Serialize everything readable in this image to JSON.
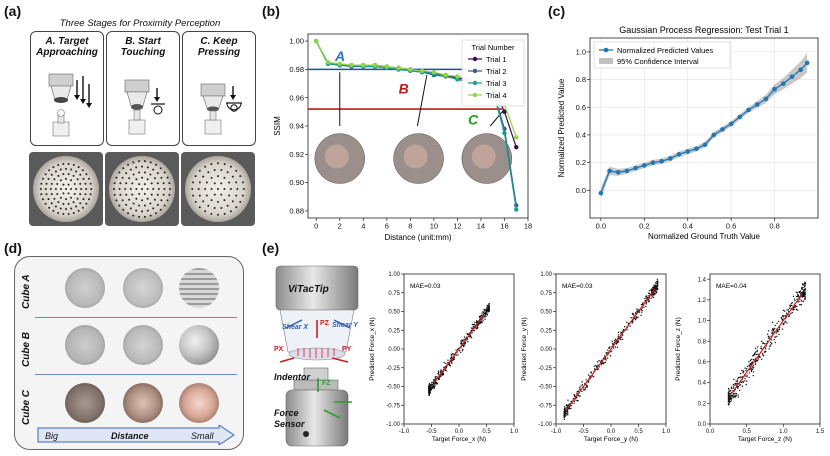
{
  "panels": {
    "a": {
      "label": "(a)",
      "title": "Three Stages for Proximity Perception",
      "stages": [
        {
          "line1": "A. Target",
          "line2": "Approaching"
        },
        {
          "line1": "B. Start",
          "line2": "Touching"
        },
        {
          "line1": "C. Keep",
          "line2": "Pressing"
        }
      ]
    },
    "b": {
      "label": "(b)"
    },
    "c": {
      "label": "(c)"
    },
    "d": {
      "label": "(d)",
      "rows": [
        "Cube A",
        "Cube B",
        "Cube C"
      ],
      "axis": {
        "left": "Big",
        "center": "Distance",
        "right": "Small"
      }
    },
    "e": {
      "label": "(e)",
      "device": "ViTacTip",
      "labels": {
        "shear_x": "Shear X",
        "shear_y": "Shear Y",
        "pz": "PZ",
        "px": "PX",
        "py": "PY",
        "indentor": "Indentor",
        "fz": "FZ",
        "force_sensor": "Force Sensor"
      }
    }
  },
  "chart_data": [
    {
      "id": "ssim",
      "type": "line",
      "title": "",
      "xlabel": "Distance (unit:mm)",
      "ylabel": "SSIM",
      "xlim": [
        -0.7,
        18
      ],
      "ylim": [
        0.875,
        1.005
      ],
      "xticks": [
        "0",
        "2",
        "4",
        "6",
        "8",
        "10",
        "12",
        "14",
        "16",
        "18"
      ],
      "yticks": [
        "0.88",
        "0.90",
        "0.92",
        "0.94",
        "0.96",
        "0.98",
        "1.00"
      ],
      "legend_title": "Trial Number",
      "legend_position": "top-right",
      "x": [
        0,
        1,
        2,
        3,
        4,
        5,
        6,
        7,
        8,
        9,
        10,
        11,
        12,
        13,
        14,
        15,
        16,
        17
      ],
      "series": [
        {
          "name": "Trial 1",
          "color": "#3b0a4f",
          "values": [
            1.0,
            0.984,
            0.983,
            0.983,
            0.983,
            0.983,
            0.982,
            0.981,
            0.98,
            0.979,
            0.977,
            0.976,
            0.974,
            0.972,
            0.97,
            0.968,
            0.95,
            0.925
          ]
        },
        {
          "name": "Trial 2",
          "color": "#3a5b8c",
          "values": [
            1.0,
            0.984,
            0.983,
            0.982,
            0.982,
            0.982,
            0.981,
            0.98,
            0.979,
            0.978,
            0.976,
            0.975,
            0.973,
            0.971,
            0.969,
            0.966,
            0.938,
            0.884
          ]
        },
        {
          "name": "Trial 3",
          "color": "#1f9e89",
          "values": [
            1.0,
            0.984,
            0.983,
            0.983,
            0.982,
            0.982,
            0.981,
            0.98,
            0.979,
            0.978,
            0.977,
            0.975,
            0.973,
            0.971,
            0.969,
            0.965,
            0.935,
            0.881
          ]
        },
        {
          "name": "Trial 4",
          "color": "#8fd744",
          "values": [
            1.0,
            0.985,
            0.984,
            0.983,
            0.983,
            0.983,
            0.982,
            0.981,
            0.98,
            0.979,
            0.978,
            0.976,
            0.975,
            0.973,
            0.971,
            0.968,
            0.955,
            0.932
          ]
        }
      ],
      "hlines": [
        {
          "y": 0.98,
          "color": "#1f4fa8"
        },
        {
          "y": 0.952,
          "color": "#c01818"
        }
      ],
      "annotations": [
        {
          "text": "A",
          "color": "#2f6fd1",
          "x": 1.6,
          "y": 0.986
        },
        {
          "text": "B",
          "color": "#c01818",
          "x": 7.0,
          "y": 0.963
        },
        {
          "text": "C",
          "color": "#1aa31a",
          "x": 12.9,
          "y": 0.941
        }
      ]
    },
    {
      "id": "gpr",
      "type": "line",
      "title": "Gaussian Process Regression: Test Trial 1",
      "xlabel": "Normalized Ground Truth Value",
      "ylabel": "Normalized Predicted Value",
      "xlim": [
        -0.05,
        1.0
      ],
      "ylim": [
        -0.2,
        1.1
      ],
      "xticks": [
        "0.0",
        "0.2",
        "0.4",
        "0.6",
        "0.8"
      ],
      "yticks": [
        "0.0",
        "0.2",
        "0.4",
        "0.6",
        "0.8",
        "1.0"
      ],
      "legend": [
        "Normalized Predicted Values",
        "95% Confidence Interval"
      ],
      "legend_position": "top-left",
      "x": [
        0.0,
        0.04,
        0.08,
        0.12,
        0.16,
        0.2,
        0.24,
        0.28,
        0.32,
        0.36,
        0.4,
        0.44,
        0.48,
        0.52,
        0.56,
        0.6,
        0.64,
        0.68,
        0.72,
        0.76,
        0.8,
        0.84,
        0.88,
        0.92,
        0.95
      ],
      "values": [
        -0.02,
        0.14,
        0.13,
        0.14,
        0.16,
        0.18,
        0.2,
        0.21,
        0.23,
        0.26,
        0.28,
        0.3,
        0.33,
        0.4,
        0.44,
        0.48,
        0.53,
        0.58,
        0.62,
        0.66,
        0.73,
        0.77,
        0.82,
        0.87,
        0.92
      ],
      "ci_halfwidth": [
        0.04,
        0.03,
        0.025,
        0.02,
        0.02,
        0.02,
        0.02,
        0.02,
        0.02,
        0.02,
        0.02,
        0.02,
        0.02,
        0.02,
        0.02,
        0.02,
        0.02,
        0.02,
        0.025,
        0.03,
        0.035,
        0.04,
        0.05,
        0.06,
        0.07
      ]
    },
    {
      "id": "fx",
      "type": "scatter",
      "xlabel": "Target Force_x (N)",
      "ylabel": "Predicted Force_x (N)",
      "annotation": "MAE=0.03",
      "xlim": [
        -1.0,
        1.0
      ],
      "ylim": [
        -1.0,
        1.0
      ],
      "xticks": [
        "-1.0",
        "-0.5",
        "0.0",
        "0.5",
        "1.0"
      ],
      "yticks": [
        "-1.00",
        "-0.75",
        "-0.50",
        "-0.25",
        "0.00",
        "0.25",
        "0.50",
        "0.75",
        "1.00"
      ],
      "fit_line": [
        [
          -0.45,
          -0.45
        ],
        [
          0.45,
          0.45
        ]
      ],
      "cloud": {
        "x_range": [
          -0.55,
          0.55
        ],
        "spread": 0.04
      }
    },
    {
      "id": "fy",
      "type": "scatter",
      "xlabel": "Target Force_y (N)",
      "ylabel": "Predicted Force_y (N)",
      "annotation": "MAE=0.03",
      "xlim": [
        -1.0,
        1.0
      ],
      "ylim": [
        -1.0,
        1.0
      ],
      "xticks": [
        "-1.0",
        "-0.5",
        "0.0",
        "0.5",
        "1.0"
      ],
      "yticks": [
        "-1.00",
        "-0.75",
        "-0.50",
        "-0.25",
        "0.00",
        "0.25",
        "0.50",
        "0.75",
        "1.00"
      ],
      "fit_line": [
        [
          -0.8,
          -0.8
        ],
        [
          0.8,
          0.8
        ]
      ],
      "cloud": {
        "x_range": [
          -0.85,
          0.85
        ],
        "spread": 0.05
      }
    },
    {
      "id": "fz",
      "type": "scatter",
      "xlabel": "Target Force_z (N)",
      "ylabel": "Predicted Force_z (N)",
      "annotation": "MAE=0.04",
      "xlim": [
        0.0,
        1.5
      ],
      "ylim": [
        0.0,
        1.45
      ],
      "xticks": [
        "0.0",
        "0.5",
        "1.0",
        "1.5"
      ],
      "yticks": [
        "0.0",
        "0.2",
        "0.4",
        "0.6",
        "0.8",
        "1.0",
        "1.2",
        "1.4"
      ],
      "fit_line": [
        [
          0.3,
          0.3
        ],
        [
          1.25,
          1.25
        ]
      ],
      "cloud": {
        "x_range": [
          0.25,
          1.3
        ],
        "spread": 0.06
      }
    }
  ]
}
